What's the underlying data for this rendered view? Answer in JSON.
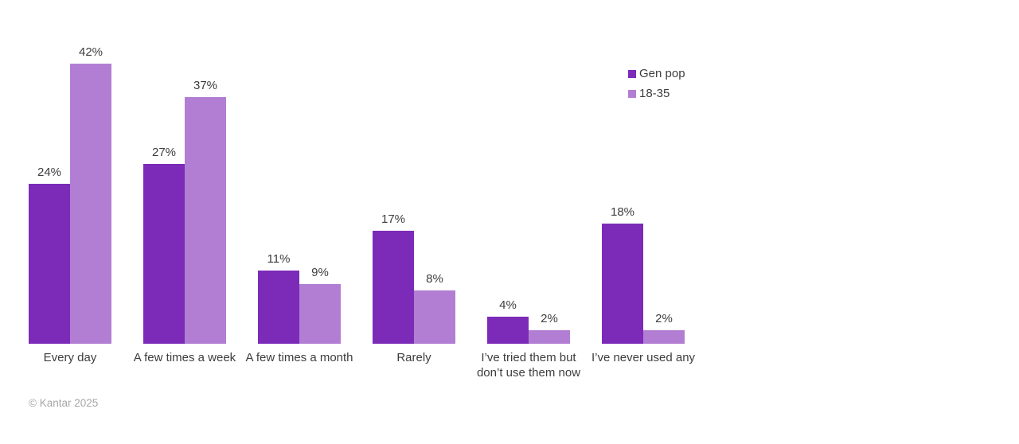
{
  "chart_data": {
    "type": "bar",
    "categories": [
      "Every day",
      "A few times a week",
      "A few times a month",
      "Rarely",
      "I’ve tried them but don’t use them now",
      "I’ve never used any"
    ],
    "series": [
      {
        "name": "Gen pop",
        "color": "#7c2bb8",
        "values": [
          24,
          27,
          11,
          17,
          4,
          18
        ]
      },
      {
        "name": "18-35",
        "color": "#b27ed3",
        "values": [
          42,
          37,
          9,
          8,
          2,
          2
        ]
      }
    ],
    "value_suffix": "%",
    "ylim": [
      0,
      45
    ],
    "grid": false,
    "axes_visible": false,
    "legend_position": "top-right",
    "label_color": "#3d3d3d"
  },
  "footer": {
    "copyright": "© Kantar 2025"
  }
}
